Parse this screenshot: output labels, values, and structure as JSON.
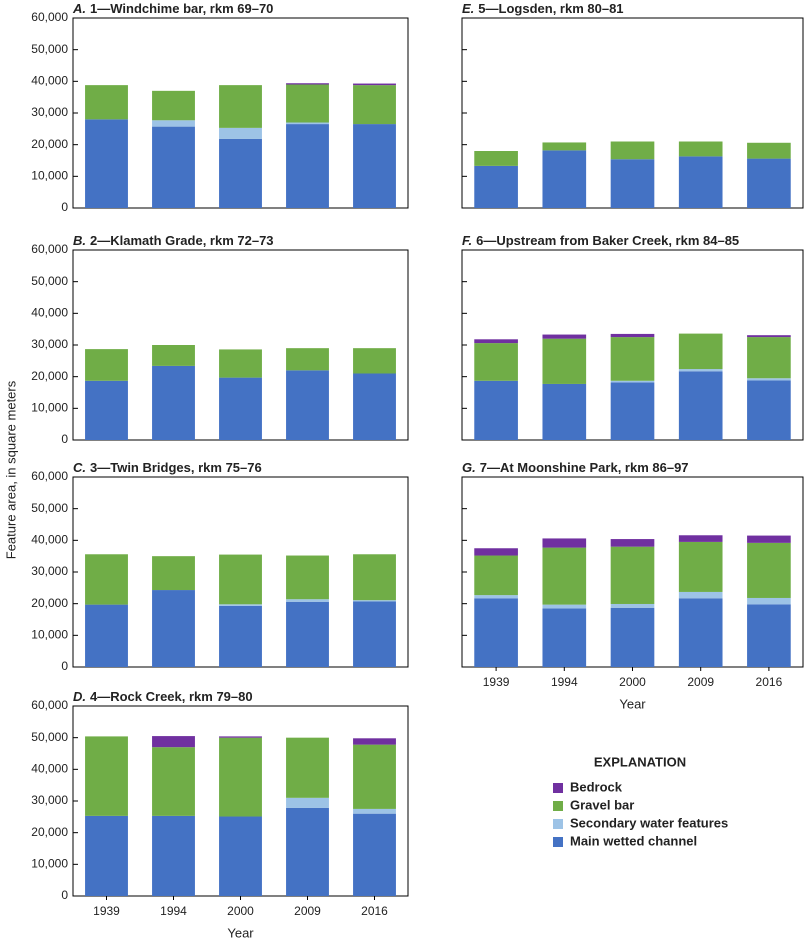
{
  "ylabel": "Feature area, in square meters",
  "xlabel": "Year",
  "ylim": [
    0,
    60000
  ],
  "yticks": [
    0,
    {
      "value": 10000,
      "label": "10,000"
    },
    {
      "value": 20000,
      "label": "20,000"
    },
    {
      "value": 30000,
      "label": "30,000"
    },
    {
      "value": 40000,
      "label": "40,000"
    },
    {
      "value": 50000,
      "label": "50,000"
    },
    {
      "value": 60000,
      "label": "60,000"
    }
  ],
  "legend": {
    "title": "EXPLANATION",
    "entries": [
      {
        "name": "Bedrock",
        "color": "#7030a0"
      },
      {
        "name": "Gravel bar",
        "color": "#70ad47"
      },
      {
        "name": "Secondary water features",
        "color": "#9dc3e6"
      },
      {
        "name": "Main wetted channel",
        "color": "#4472c4"
      }
    ]
  },
  "chart_data": [
    {
      "type": "bar",
      "stacked": true,
      "panel": "A.",
      "title": "1—Windchime bar, rkm 69–70",
      "categories": [
        null,
        null,
        null,
        null,
        null
      ],
      "series": [
        {
          "values": [
            0,
            0,
            0,
            400,
            500
          ]
        },
        {
          "values": [
            10800,
            9300,
            13500,
            12000,
            12300
          ]
        },
        {
          "values": [
            0,
            2000,
            3500,
            500,
            0
          ]
        },
        {
          "values": [
            28000,
            25700,
            21800,
            26500,
            26500
          ]
        }
      ]
    },
    {
      "type": "bar",
      "stacked": true,
      "panel": "B.",
      "title": "2—Klamath Grade, rkm 72–73",
      "categories": [
        null,
        null,
        null,
        null,
        null
      ],
      "series": [
        {
          "values": [
            0,
            0,
            0,
            0,
            0
          ]
        },
        {
          "values": [
            10000,
            6600,
            8900,
            7000,
            8000
          ]
        },
        {
          "values": [
            0,
            0,
            0,
            0,
            0
          ]
        },
        {
          "values": [
            18700,
            23400,
            19700,
            22000,
            21000
          ]
        }
      ]
    },
    {
      "type": "bar",
      "stacked": true,
      "panel": "C.",
      "title": "3—Twin Bridges, rkm 75–76",
      "categories": [
        null,
        null,
        null,
        null,
        null
      ],
      "series": [
        {
          "values": [
            0,
            0,
            0,
            0,
            0
          ]
        },
        {
          "values": [
            15900,
            10700,
            15700,
            13800,
            14500
          ]
        },
        {
          "values": [
            0,
            0,
            500,
            800,
            400
          ]
        },
        {
          "values": [
            19700,
            24300,
            19300,
            20600,
            20700
          ]
        }
      ]
    },
    {
      "type": "bar",
      "stacked": true,
      "panel": "D.",
      "title": "4—Rock Creek, rkm 79–80",
      "categories": [
        "1939",
        "1994",
        "2000",
        "2009",
        "2016"
      ],
      "series": [
        {
          "values": [
            0,
            3500,
            400,
            0,
            2000
          ]
        },
        {
          "values": [
            25100,
            21700,
            24900,
            19000,
            20300
          ]
        },
        {
          "values": [
            0,
            0,
            0,
            3200,
            1500
          ]
        },
        {
          "values": [
            25300,
            25300,
            25100,
            27800,
            26000
          ]
        }
      ]
    },
    {
      "type": "bar",
      "stacked": true,
      "panel": "E.",
      "title": "5—Logsden, rkm 80–81",
      "categories": [
        null,
        null,
        null,
        null,
        null
      ],
      "series": [
        {
          "values": [
            0,
            0,
            0,
            0,
            0
          ]
        },
        {
          "values": [
            4700,
            2500,
            5600,
            4700,
            5000
          ]
        },
        {
          "values": [
            0,
            0,
            0,
            0,
            0
          ]
        },
        {
          "values": [
            13300,
            18200,
            15400,
            16300,
            15600
          ]
        }
      ]
    },
    {
      "type": "bar",
      "stacked": true,
      "panel": "F.",
      "title": "6—Upstream from Baker Creek, rkm 84–85",
      "categories": [
        null,
        null,
        null,
        null,
        null
      ],
      "series": [
        {
          "values": [
            1200,
            1300,
            1000,
            0,
            600
          ]
        },
        {
          "values": [
            11900,
            14300,
            13800,
            11200,
            13000
          ]
        },
        {
          "values": [
            0,
            0,
            500,
            700,
            700
          ]
        },
        {
          "values": [
            18700,
            17700,
            18200,
            21700,
            18800
          ]
        }
      ]
    },
    {
      "type": "bar",
      "stacked": true,
      "panel": "G.",
      "title": "7—At Moonshine Park, rkm 86–97",
      "categories": [
        "1939",
        "1994",
        "2000",
        "2009",
        "2016"
      ],
      "series": [
        {
          "values": [
            2300,
            2900,
            2400,
            2100,
            2300
          ]
        },
        {
          "values": [
            12500,
            18000,
            18100,
            15800,
            17400
          ]
        },
        {
          "values": [
            1000,
            1200,
            1200,
            2000,
            2000
          ]
        },
        {
          "values": [
            21700,
            18500,
            18700,
            21700,
            19800
          ]
        }
      ]
    }
  ]
}
